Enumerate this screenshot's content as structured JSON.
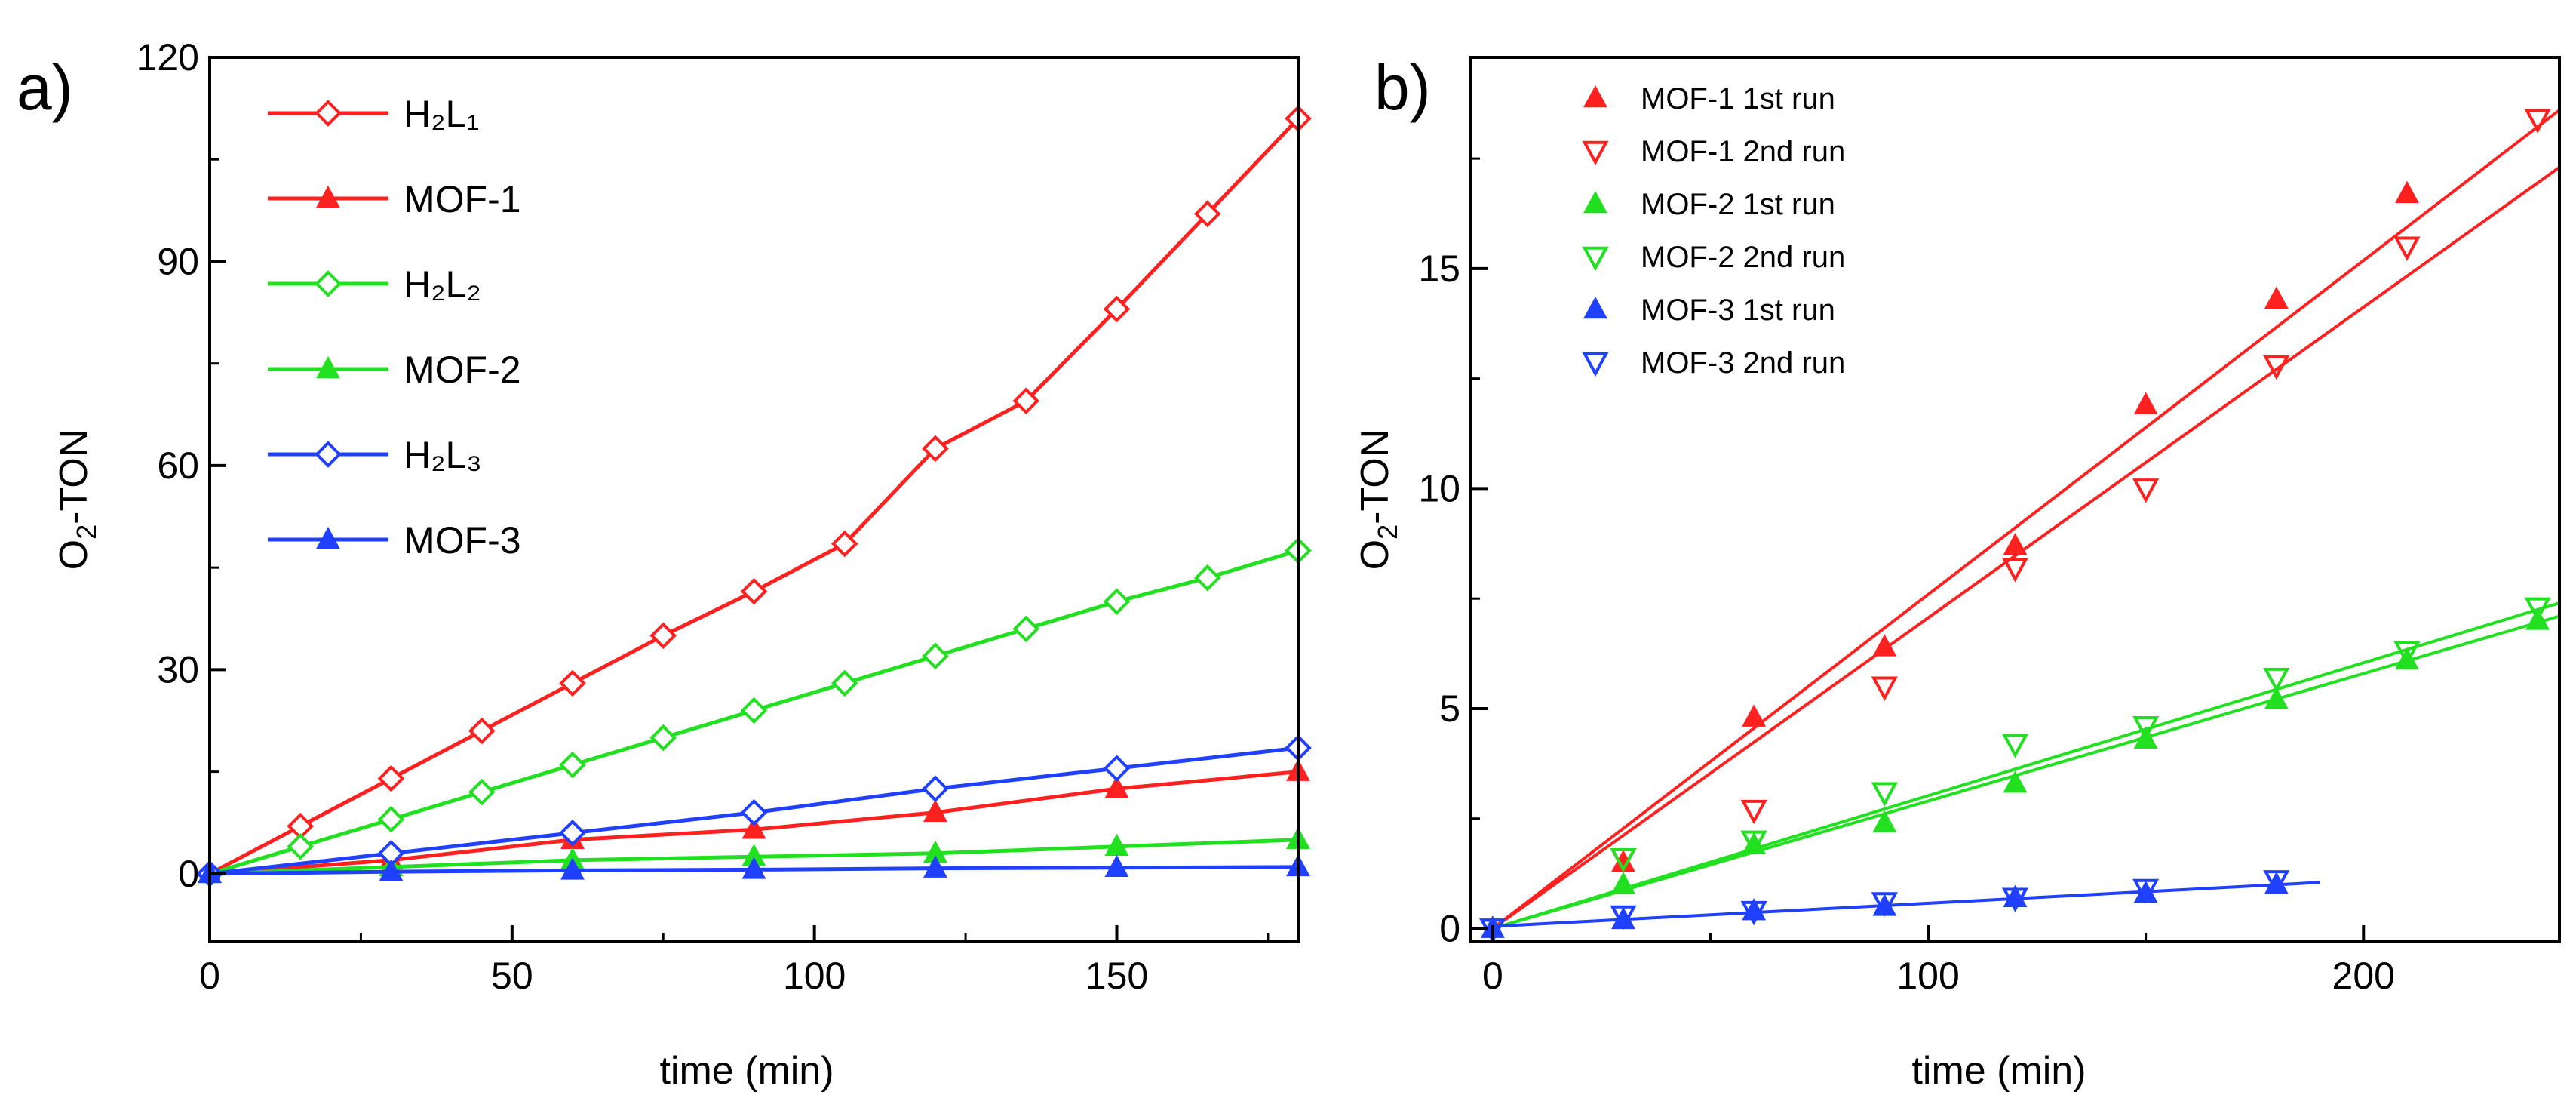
{
  "chart_data": [
    {
      "panel": "a)",
      "type": "line",
      "xlabel": "time (min)",
      "ylabel": "O2-TON",
      "xlim": [
        0,
        180
      ],
      "ylim": [
        -10,
        120
      ],
      "xticks": [
        0,
        50,
        100,
        150
      ],
      "yticks": [
        0,
        30,
        60,
        90,
        120
      ],
      "legend_position": "top-left",
      "series": [
        {
          "name": "H2L1",
          "legend_text": "H₂L₁",
          "color": "#ff2020",
          "marker": "diamond-open",
          "x": [
            0,
            15,
            30,
            45,
            60,
            75,
            90,
            105,
            120,
            135,
            150,
            165,
            180
          ],
          "y": [
            0,
            7,
            14,
            21,
            28,
            35,
            41.5,
            48.5,
            62.5,
            69.5,
            83,
            97,
            111
          ]
        },
        {
          "name": "MOF-1",
          "legend_text": "MOF-1",
          "color": "#ff2020",
          "marker": "triangle-filled",
          "x": [
            0,
            30,
            60,
            90,
            120,
            150,
            180
          ],
          "y": [
            0,
            2,
            5,
            6.5,
            9,
            12.5,
            15
          ]
        },
        {
          "name": "H2L2",
          "legend_text": "H₂L₂",
          "color": "#20e020",
          "marker": "diamond-open",
          "x": [
            0,
            15,
            30,
            45,
            60,
            75,
            90,
            105,
            120,
            135,
            150,
            165,
            180
          ],
          "y": [
            0,
            4,
            8,
            12,
            16,
            20,
            24,
            28,
            32,
            36,
            40,
            43.5,
            47.5
          ]
        },
        {
          "name": "MOF-2",
          "legend_text": "MOF-2",
          "color": "#20e020",
          "marker": "triangle-filled",
          "x": [
            0,
            30,
            60,
            90,
            120,
            150,
            180
          ],
          "y": [
            0,
            1,
            2,
            2.5,
            3,
            4,
            5
          ]
        },
        {
          "name": "H2L3",
          "legend_text": "H₂L₃",
          "color": "#2040ff",
          "marker": "diamond-open",
          "x": [
            0,
            30,
            60,
            90,
            120,
            150,
            180
          ],
          "y": [
            0,
            3,
            6,
            9,
            12.5,
            15.5,
            18.5
          ]
        },
        {
          "name": "MOF-3",
          "legend_text": "MOF-3",
          "color": "#2040ff",
          "marker": "triangle-filled",
          "x": [
            0,
            30,
            60,
            90,
            120,
            150,
            180
          ],
          "y": [
            0,
            0.3,
            0.5,
            0.6,
            0.8,
            0.9,
            1
          ]
        }
      ]
    },
    {
      "panel": "b)",
      "type": "scatter",
      "xlabel": "time (min)",
      "ylabel": "O2-TON",
      "xlim": [
        -5,
        245
      ],
      "ylim": [
        -0.3,
        19.8
      ],
      "xticks": [
        0,
        100,
        200
      ],
      "yticks": [
        0,
        5,
        10,
        15
      ],
      "legend_position": "top-left",
      "series": [
        {
          "name": "MOF-1 1st run",
          "legend_text": "MOF-1 1st run",
          "color": "#ff2020",
          "marker": "triangle-filled",
          "x": [
            0,
            30,
            60,
            90,
            120,
            150,
            180,
            210
          ],
          "y": [
            0,
            1.5,
            4.8,
            6.4,
            8.7,
            11.9,
            14.3,
            16.7
          ],
          "fit": [
            [
              0,
              0
            ],
            [
              245,
              18.6
            ]
          ]
        },
        {
          "name": "MOF-1 2nd run",
          "legend_text": "MOF-1 2nd run",
          "color": "#ff2020",
          "marker": "triangle-down-open",
          "x": [
            0,
            30,
            60,
            90,
            120,
            150,
            180,
            210,
            240
          ],
          "y": [
            0,
            1.6,
            2.7,
            5.5,
            8.2,
            10,
            12.8,
            15.5,
            18.4
          ],
          "fit": [
            [
              0,
              0
            ],
            [
              245,
              17.3
            ]
          ]
        },
        {
          "name": "MOF-2 1st run",
          "legend_text": "MOF-2 1st run",
          "color": "#20e020",
          "marker": "triangle-filled",
          "x": [
            0,
            30,
            60,
            90,
            120,
            150,
            180,
            210,
            240
          ],
          "y": [
            0,
            1,
            1.9,
            2.4,
            3.3,
            4.3,
            5.2,
            6.1,
            7
          ],
          "fit": [
            [
              0,
              0
            ],
            [
              245,
              7.1
            ]
          ]
        },
        {
          "name": "MOF-2 2nd run",
          "legend_text": "MOF-2 2nd run",
          "color": "#20e020",
          "marker": "triangle-down-open",
          "x": [
            0,
            30,
            60,
            90,
            120,
            150,
            180,
            210,
            240
          ],
          "y": [
            0,
            1.6,
            2,
            3.1,
            4.2,
            4.6,
            5.7,
            6.3,
            7.3
          ],
          "fit": [
            [
              0,
              0
            ],
            [
              245,
              7.4
            ]
          ]
        },
        {
          "name": "MOF-3 1st run",
          "legend_text": "MOF-3 1st run",
          "color": "#2040ff",
          "marker": "triangle-filled",
          "x": [
            0,
            30,
            60,
            90,
            120,
            150,
            180
          ],
          "y": [
            0,
            0.2,
            0.4,
            0.5,
            0.7,
            0.8,
            1
          ],
          "fit": [
            [
              0,
              0.05
            ],
            [
              190,
              1.05
            ]
          ]
        },
        {
          "name": "MOF-3 2nd run",
          "legend_text": "MOF-3 2nd run",
          "color": "#2040ff",
          "marker": "triangle-down-open",
          "x": [
            0,
            30,
            60,
            90,
            120,
            150,
            180
          ],
          "y": [
            0,
            0.3,
            0.4,
            0.6,
            0.7,
            0.9,
            1.1
          ],
          "fit": null
        }
      ]
    }
  ]
}
